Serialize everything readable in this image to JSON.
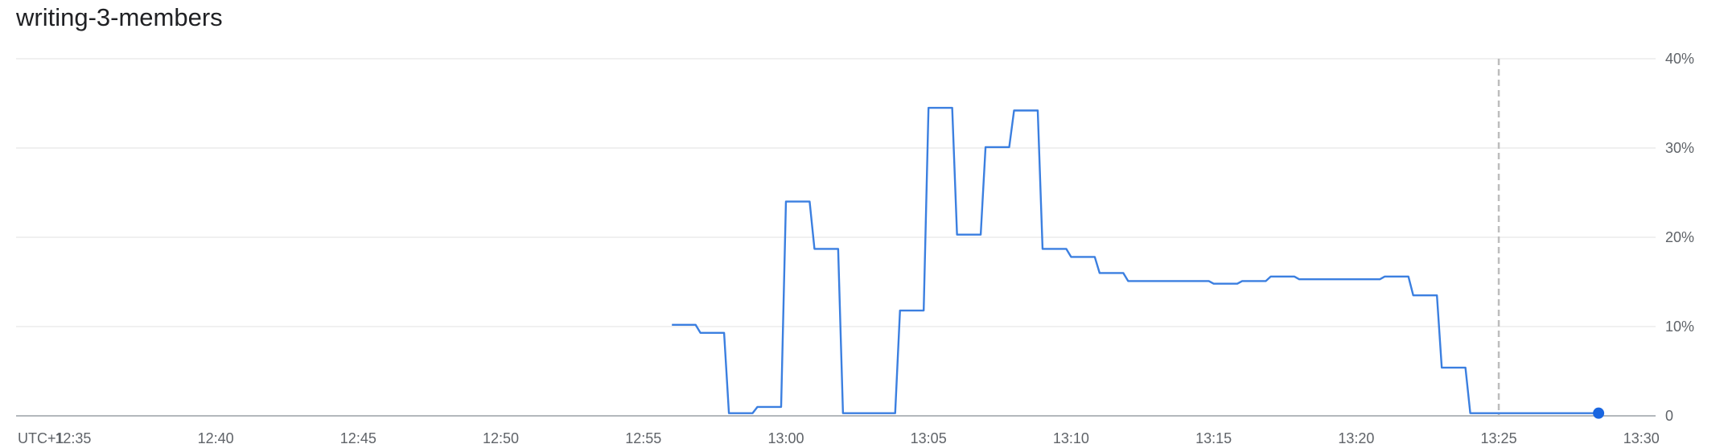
{
  "chart_data": {
    "type": "line",
    "title": "writing-3-members",
    "timezone_label": "UTC+1",
    "x_tick_labels": [
      "12:35",
      "12:40",
      "12:45",
      "12:50",
      "12:55",
      "13:00",
      "13:05",
      "13:10",
      "13:15",
      "13:20",
      "13:25",
      "13:30"
    ],
    "y_tick_labels": [
      "0",
      "10%",
      "20%",
      "30%",
      "40%"
    ],
    "x_range": [
      "12:33:00",
      "13:30:30"
    ],
    "y_range": [
      0,
      40
    ],
    "y_unit": "%",
    "grid": "horizontal",
    "step": true,
    "vertical_marker_x": "13:25:00",
    "series": [
      {
        "color": "#3b7fe0",
        "points": [
          [
            "12:56:00",
            10.2
          ],
          [
            "12:57:00",
            9.3
          ],
          [
            "12:58:00",
            0.3
          ],
          [
            "12:59:00",
            1.0
          ],
          [
            "13:00:00",
            24.0
          ],
          [
            "13:01:00",
            18.7
          ],
          [
            "13:02:00",
            0.3
          ],
          [
            "13:04:00",
            11.8
          ],
          [
            "13:05:00",
            34.5
          ],
          [
            "13:06:00",
            20.3
          ],
          [
            "13:07:00",
            30.1
          ],
          [
            "13:08:00",
            34.2
          ],
          [
            "13:09:00",
            18.7
          ],
          [
            "13:10:00",
            17.8
          ],
          [
            "13:11:00",
            16.0
          ],
          [
            "13:12:00",
            15.1
          ],
          [
            "13:15:00",
            14.8
          ],
          [
            "13:16:00",
            15.1
          ],
          [
            "13:17:00",
            15.6
          ],
          [
            "13:18:00",
            15.3
          ],
          [
            "13:21:00",
            15.6
          ],
          [
            "13:22:00",
            13.5
          ],
          [
            "13:23:00",
            5.4
          ],
          [
            "13:24:00",
            0.3
          ],
          [
            "13:28:30",
            0.3
          ]
        ]
      }
    ]
  }
}
